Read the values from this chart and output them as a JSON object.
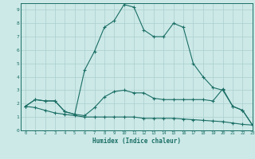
{
  "xlabel": "Humidex (Indice chaleur)",
  "bg_color": "#cce9e7",
  "grid_color": "#aacece",
  "line_color": "#1a6e65",
  "xlim": [
    -0.5,
    23
  ],
  "ylim": [
    0,
    9.5
  ],
  "top_x": [
    0,
    1,
    2,
    3,
    4,
    5,
    6,
    7,
    8,
    9,
    10,
    11,
    12,
    13,
    14,
    15,
    16,
    17,
    18,
    19,
    20,
    21,
    22,
    23
  ],
  "top_y": [
    1.8,
    2.3,
    2.2,
    2.2,
    1.4,
    1.2,
    4.5,
    5.9,
    7.7,
    8.2,
    9.4,
    9.2,
    7.5,
    7.0,
    7.0,
    8.0,
    7.7,
    5.0,
    4.0,
    3.2,
    3.0,
    1.8,
    1.5,
    0.4
  ],
  "mid_x": [
    0,
    1,
    2,
    3,
    4,
    5,
    6,
    7,
    8,
    9,
    10,
    11,
    12,
    13,
    14,
    15,
    16,
    17,
    18,
    19,
    20,
    21,
    22,
    23
  ],
  "mid_y": [
    1.8,
    2.3,
    2.2,
    2.2,
    1.4,
    1.2,
    1.1,
    1.7,
    2.5,
    2.9,
    3.0,
    2.8,
    2.8,
    2.4,
    2.3,
    2.3,
    2.3,
    2.3,
    2.3,
    2.2,
    3.1,
    1.8,
    1.5,
    0.4
  ],
  "bot_x": [
    0,
    1,
    2,
    3,
    4,
    5,
    6,
    7,
    8,
    9,
    10,
    11,
    12,
    13,
    14,
    15,
    16,
    17,
    18,
    19,
    20,
    21,
    22,
    23
  ],
  "bot_y": [
    1.8,
    1.7,
    1.5,
    1.3,
    1.2,
    1.1,
    1.0,
    1.0,
    1.0,
    1.0,
    1.0,
    1.0,
    0.9,
    0.9,
    0.9,
    0.9,
    0.85,
    0.8,
    0.75,
    0.7,
    0.65,
    0.55,
    0.45,
    0.4
  ],
  "xtick_labels": [
    "0",
    "1",
    "2",
    "3",
    "4",
    "5",
    "6",
    "7",
    "8",
    "9",
    "10",
    "11",
    "12",
    "13",
    "14",
    "15",
    "16",
    "17",
    "18",
    "19",
    "20",
    "21",
    "22",
    "23"
  ],
  "ytick_labels": [
    "0",
    "1",
    "2",
    "3",
    "4",
    "5",
    "6",
    "7",
    "8",
    "9"
  ]
}
